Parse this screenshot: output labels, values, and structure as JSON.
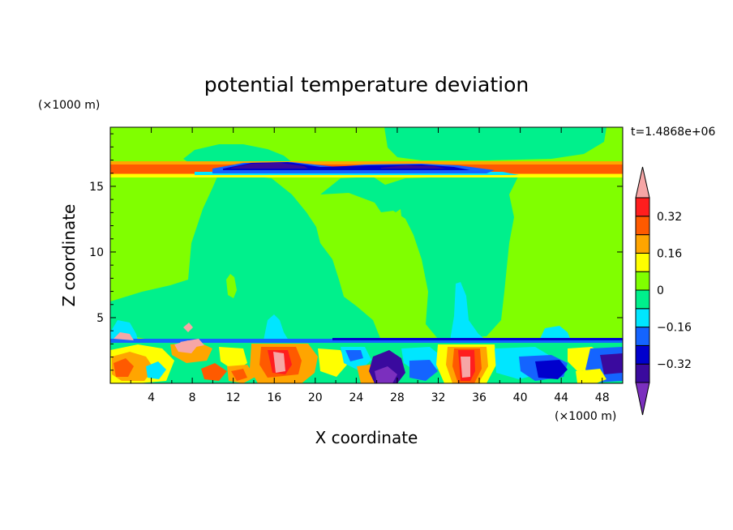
{
  "chart_data": {
    "type": "heatmap",
    "title": "potential temperature deviation",
    "xlabel": "X coordinate",
    "ylabel": "Z coordinate",
    "x_unit": "(×1000 m)",
    "y_unit": "(×1000 m)",
    "time_label": "t=1.4868e+06",
    "xlim": [
      0,
      50
    ],
    "ylim": [
      0,
      19.5
    ],
    "x_ticks": [
      4,
      8,
      12,
      16,
      20,
      24,
      28,
      32,
      36,
      40,
      44,
      48
    ],
    "y_ticks": [
      5,
      10,
      15
    ],
    "colorbar": {
      "levels": [
        -0.4,
        -0.32,
        -0.24,
        -0.16,
        -0.08,
        0,
        0.08,
        0.16,
        0.24,
        0.32,
        0.4
      ],
      "tick_labels": [
        "0.32",
        "0.16",
        "0",
        "−0.16",
        "−0.32"
      ],
      "tick_values": [
        0.32,
        0.16,
        0,
        -0.16,
        -0.32
      ],
      "colors": [
        "#7b2fbe",
        "#3a0a9e",
        "#0000cd",
        "#1464ff",
        "#00e6ff",
        "#00f08c",
        "#80ff00",
        "#ffff00",
        "#ffa500",
        "#ff5a00",
        "#ff1e1e",
        "#f6a6a6"
      ],
      "extend": "both"
    },
    "field_regions": {
      "background_value": 0.04,
      "upper_plume_value": -0.04,
      "tropopause_positive_band": {
        "z": [
          16.3,
          17.2
        ],
        "value": 0.3
      },
      "tropopause_negative_dip": {
        "x": [
          14,
          40
        ],
        "z": [
          16.2,
          16.9
        ],
        "value": -0.3
      },
      "boundary_layer": {
        "z": [
          0,
          3.5
        ],
        "note_values_range": [
          -0.4,
          0.4
        ]
      }
    }
  }
}
